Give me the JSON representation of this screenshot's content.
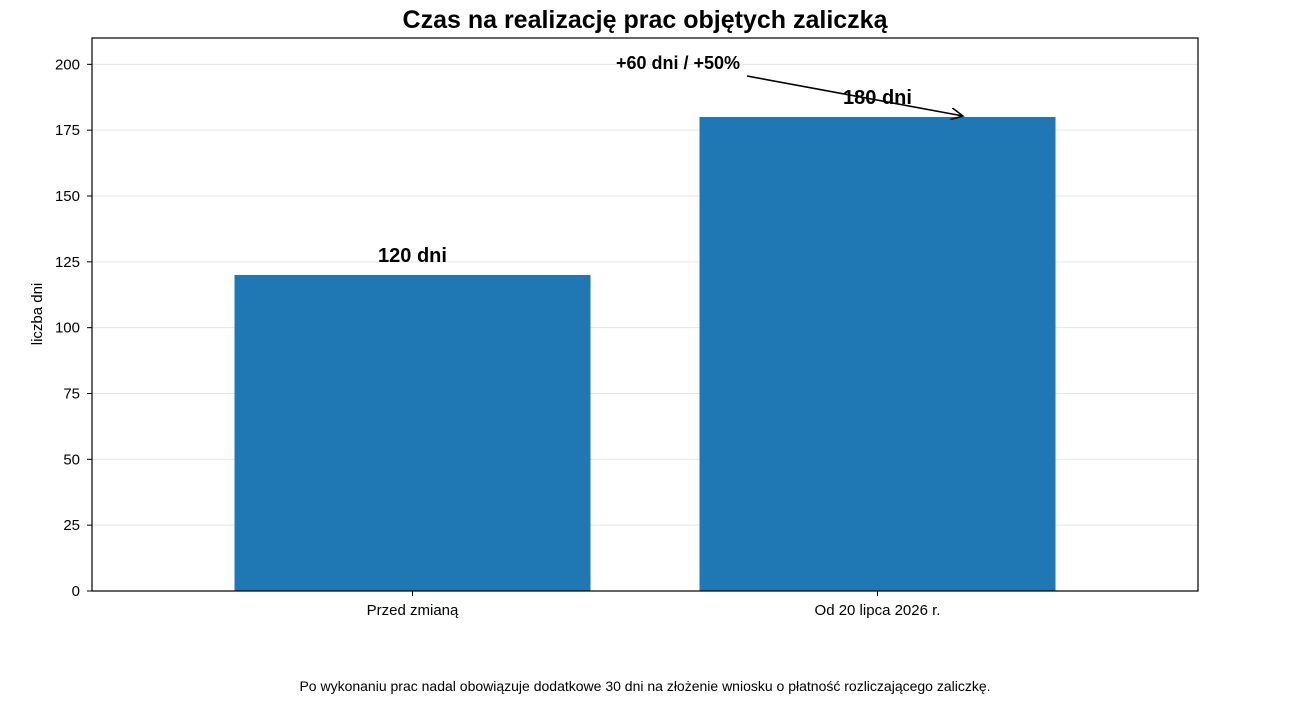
{
  "chart_data": {
    "type": "bar",
    "title": "Czas na realizację prac objętych zaliczką",
    "xlabel": "",
    "ylabel": "liczba dni",
    "categories": [
      "Przed zmianą",
      "Od 20 lipca 2026 r."
    ],
    "values": [
      120,
      180
    ],
    "data_labels": [
      "120 dni",
      "180 dni"
    ],
    "ylim": [
      0,
      210
    ],
    "yticks": [
      0,
      25,
      50,
      75,
      100,
      125,
      150,
      175,
      200
    ],
    "grid": "horizontal",
    "bar_color": "#1f77b4",
    "annotation": {
      "text": "+60 dni / +50%",
      "points_to_category": "Od 20 lipca 2026 r."
    },
    "footnote": "Po wykonaniu prac nadal obowiązuje dodatkowe 30 dni na złożenie wniosku o płatność rozliczającego zaliczkę."
  }
}
